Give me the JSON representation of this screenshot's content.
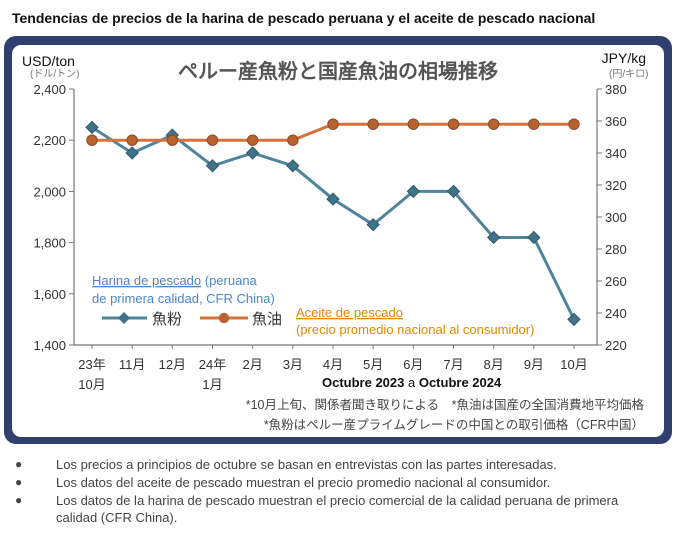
{
  "page": {
    "title": "Tendencias de precios de la harina de pescado peruana y el aceite de pescado nacional"
  },
  "chart_data": {
    "type": "line",
    "title": "ペルー産魚粉と国産魚油の相場推移",
    "left_unit": "(ドル/トン)",
    "right_unit": "(円/キロ)",
    "ylabel": "USD/ton",
    "y2label": "JPY/kg",
    "ylim": [
      1400,
      2400
    ],
    "yticks": [
      "1,400",
      "1,600",
      "1,800",
      "2,000",
      "2,200",
      "2,400"
    ],
    "y2lim": [
      220,
      380
    ],
    "y2ticks": [
      "220",
      "240",
      "260",
      "280",
      "300",
      "320",
      "340",
      "360",
      "380"
    ],
    "categories": [
      {
        "l1": "23年",
        "l2": "10月"
      },
      {
        "l1": "11月",
        "l2": ""
      },
      {
        "l1": "12月",
        "l2": ""
      },
      {
        "l1": "24年",
        "l2": "1月"
      },
      {
        "l1": "2月",
        "l2": ""
      },
      {
        "l1": "3月",
        "l2": ""
      },
      {
        "l1": "4月",
        "l2": ""
      },
      {
        "l1": "5月",
        "l2": ""
      },
      {
        "l1": "6月",
        "l2": ""
      },
      {
        "l1": "7月",
        "l2": ""
      },
      {
        "l1": "8月",
        "l2": ""
      },
      {
        "l1": "9月",
        "l2": ""
      },
      {
        "l1": "10月",
        "l2": ""
      }
    ],
    "series": [
      {
        "name": "魚粉",
        "axis": "left",
        "color": "#4f849a",
        "values": [
          2250,
          2150,
          2220,
          2100,
          2150,
          2100,
          1970,
          1870,
          2000,
          2000,
          1820,
          1820,
          1500
        ]
      },
      {
        "name": "魚油",
        "axis": "right",
        "color": "#d2733e",
        "values": [
          348,
          348,
          348,
          348,
          348,
          348,
          358,
          358,
          358,
          358,
          358,
          358,
          358
        ]
      }
    ],
    "grid": false,
    "legend_position": "bottom-left",
    "annotations": {
      "fishmeal_link": "Harina de pescado",
      "fishmeal_rest": " (peruana de primera calidad, CFR China)",
      "fishoil_line1": "Aceite de pescado",
      "fishoil_line2": "(precio promedio nacional al consumidor)",
      "period_a": "Octubre 2023",
      "period_join": " a ",
      "period_b": "Octubre 2024"
    },
    "footnotes": [
      "*10月上旬、関係者聞き取りによる　*魚油は国産の全国消費地平均価格",
      "*魚粉はペルー産プライムグレードの中国との取引価格（CFR中国）"
    ],
    "colors": {
      "annotation_blue": "#4a86c8",
      "annotation_orange": "#e08a00",
      "title_gray": "#555555",
      "axis_gray": "#777777",
      "footnote_gray": "#444444"
    }
  },
  "bullets": [
    "Los precios a principios de octubre se basan en entrevistas con las partes interesadas.",
    "Los datos del aceite de pescado muestran el precio promedio nacional al consumidor.",
    "Los datos de la harina de pescado muestran el precio comercial de la calidad peruana de primera calidad (CFR China)."
  ]
}
